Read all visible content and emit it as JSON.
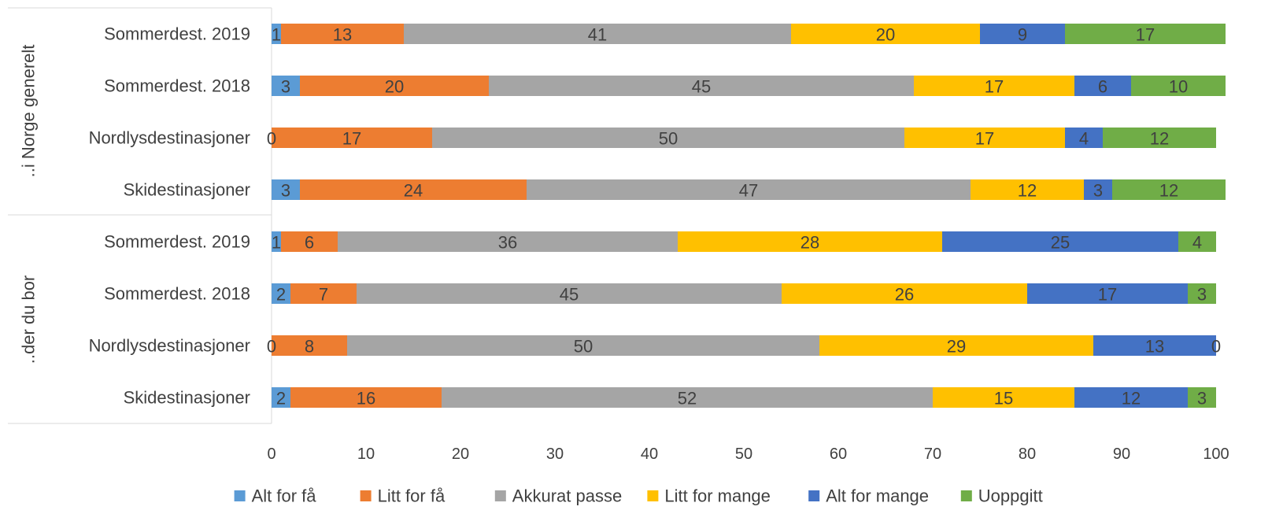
{
  "chart_data": {
    "type": "bar",
    "orientation": "horizontal",
    "stacked": true,
    "title": "",
    "xlabel": "",
    "ylabel": "",
    "xlim": [
      0,
      100
    ],
    "x_ticks": [
      0,
      10,
      20,
      30,
      40,
      50,
      60,
      70,
      80,
      90,
      100
    ],
    "grid": false,
    "legend_position": "bottom",
    "groups": [
      {
        "label": "..i Norge generelt",
        "categories": [
          "Sommerdest. 2019",
          "Sommerdest. 2018",
          "Nordlysdestinasjoner",
          "Skidestinasjoner"
        ]
      },
      {
        "label": "..der du bor",
        "categories": [
          "Sommerdest. 2019",
          "Sommerdest. 2018",
          "Nordlysdestinasjoner",
          "Skidestinasjoner"
        ]
      }
    ],
    "categories": [
      "Sommerdest. 2019",
      "Sommerdest. 2018",
      "Nordlysdestinasjoner",
      "Skidestinasjoner",
      "Sommerdest. 2019",
      "Sommerdest. 2018",
      "Nordlysdestinasjoner",
      "Skidestinasjoner"
    ],
    "series": [
      {
        "name": "Alt for få",
        "color": "#5b9bd5",
        "values": [
          1,
          3,
          0,
          3,
          1,
          2,
          0,
          2
        ]
      },
      {
        "name": "Litt for få",
        "color": "#ed7d31",
        "values": [
          13,
          20,
          17,
          24,
          6,
          7,
          8,
          16
        ]
      },
      {
        "name": "Akkurat passe",
        "color": "#a5a5a5",
        "values": [
          41,
          45,
          50,
          47,
          36,
          45,
          50,
          52
        ]
      },
      {
        "name": "Litt for mange",
        "color": "#ffc000",
        "values": [
          20,
          17,
          17,
          12,
          28,
          26,
          29,
          15
        ]
      },
      {
        "name": "Alt for mange",
        "color": "#4472c4",
        "values": [
          9,
          6,
          4,
          3,
          25,
          17,
          13,
          12
        ]
      },
      {
        "name": "Uoppgitt",
        "color": "#70ad47",
        "values": [
          17,
          10,
          12,
          12,
          4,
          3,
          0,
          3
        ]
      }
    ]
  }
}
